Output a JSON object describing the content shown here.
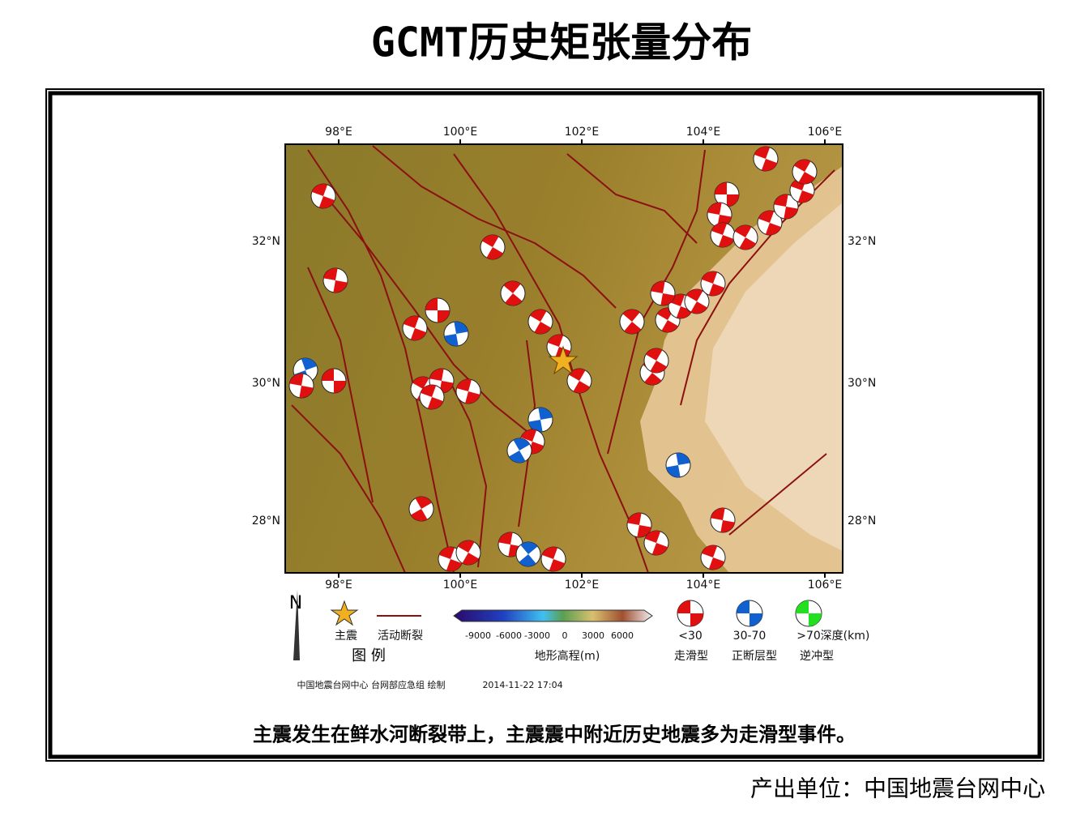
{
  "header": {
    "title": "GCMT历史矩张量分布"
  },
  "map": {
    "lon_labels": [
      "98°E",
      "100°E",
      "102°E",
      "104°E",
      "106°E"
    ],
    "lat_labels": [
      "32°N",
      "30°N",
      "28°N"
    ],
    "north": "N",
    "legend": {
      "title": "图 例",
      "mainshock": "主震",
      "fault": "活动断裂",
      "colorbar_ticks": [
        "-9000",
        "-6000",
        "-3000",
        "0",
        "3000",
        "6000"
      ],
      "colorbar_title": "地形高程(m)",
      "depths": [
        "<30",
        "30-70",
        ">70"
      ],
      "depth_unit": "深度(km)",
      "types": [
        "走滑型",
        "正断层型",
        "逆冲型"
      ]
    },
    "credit": "中国地震台网中心 台网部应急组 绘制",
    "timestamp": "2014-11-22 17:04"
  },
  "caption": "主震发生在鲜水河断裂带上，主震震中附近历史地震多为走滑型事件。",
  "footer": "产出单位：中国地震台网中心"
}
